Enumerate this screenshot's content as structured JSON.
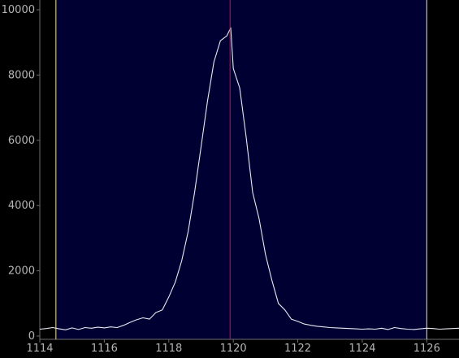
{
  "chart_data": {
    "type": "line",
    "title": "",
    "xlabel": "",
    "ylabel": "",
    "xlim": [
      1114,
      1127
    ],
    "ylim": [
      -100,
      10300
    ],
    "grid": false,
    "legend": "none",
    "x_ticks": [
      1114,
      1116,
      1118,
      1120,
      1122,
      1124,
      1126
    ],
    "x_tick_labels": [
      "1114",
      "1116",
      "1118",
      "1120",
      "1122",
      "1124",
      "1126"
    ],
    "y_ticks": [
      0,
      2000,
      4000,
      6000,
      8000,
      10000
    ],
    "y_tick_labels": [
      "0",
      "2000",
      "4000",
      "6000",
      "8000",
      "10000"
    ],
    "highlight_range": [
      1114.5,
      1126.0
    ],
    "marker_x": 1119.9,
    "colors": {
      "background": "#000000",
      "plot_area": "#000000",
      "highlight": "#000033",
      "line": "#e8e8f2",
      "range_bounds": "#f0e6a0",
      "marker": "#c01850",
      "axis": "#6e6e6e",
      "tick_text": "#b5b5b5"
    },
    "series": [
      {
        "x": [
          1114.0,
          1114.2,
          1114.4,
          1114.6,
          1114.8,
          1115.0,
          1115.2,
          1115.4,
          1115.6,
          1115.8,
          1116.0,
          1116.2,
          1116.4,
          1116.6,
          1116.8,
          1117.0,
          1117.2,
          1117.4,
          1117.6,
          1117.8,
          1118.0,
          1118.2,
          1118.4,
          1118.6,
          1118.8,
          1119.0,
          1119.2,
          1119.4,
          1119.6,
          1119.8,
          1119.92,
          1120.0,
          1120.2,
          1120.4,
          1120.6,
          1120.8,
          1121.0,
          1121.2,
          1121.4,
          1121.6,
          1121.8,
          1122.0,
          1122.2,
          1122.4,
          1122.6,
          1122.8,
          1123.0,
          1123.2,
          1123.4,
          1123.6,
          1123.8,
          1124.0,
          1124.2,
          1124.4,
          1124.6,
          1124.8,
          1125.0,
          1125.2,
          1125.4,
          1125.6,
          1125.8,
          1126.0,
          1126.2,
          1126.4,
          1126.6,
          1126.8,
          1127.0
        ],
        "values": [
          210,
          230,
          260,
          220,
          190,
          250,
          200,
          260,
          240,
          270,
          250,
          280,
          260,
          330,
          420,
          500,
          560,
          520,
          720,
          800,
          1200,
          1650,
          2300,
          3200,
          4400,
          5800,
          7200,
          8400,
          9050,
          9200,
          9450,
          8200,
          7600,
          6100,
          4400,
          3600,
          2500,
          1700,
          1000,
          800,
          520,
          450,
          370,
          330,
          300,
          280,
          260,
          250,
          240,
          230,
          220,
          210,
          220,
          210,
          240,
          200,
          260,
          230,
          210,
          200,
          220,
          240,
          230,
          210,
          220,
          230,
          240
        ]
      }
    ]
  }
}
